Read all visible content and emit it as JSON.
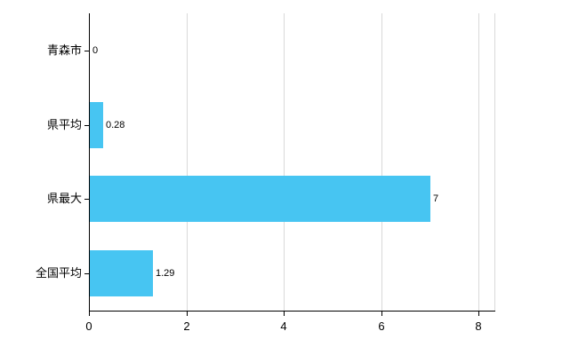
{
  "chart_data": {
    "type": "bar",
    "orientation": "horizontal",
    "title": "",
    "categories": [
      "青森市",
      "県平均",
      "県最大",
      "全国平均"
    ],
    "values": [
      0,
      0.28,
      7,
      1.29
    ],
    "value_labels": [
      "0",
      "0.28",
      "7",
      "1.29"
    ],
    "x_ticks": [
      0,
      2,
      4,
      6,
      8
    ],
    "x_tick_labels": [
      "0",
      "2",
      "4",
      "6",
      "8"
    ],
    "xlim": [
      0,
      8.33
    ],
    "grid": "vertical-only",
    "legend": "none",
    "bar_color": "#47c5f2",
    "grid_color": "#d9d9d9",
    "axis_color": "#000000",
    "background_color": "#ffffff"
  }
}
